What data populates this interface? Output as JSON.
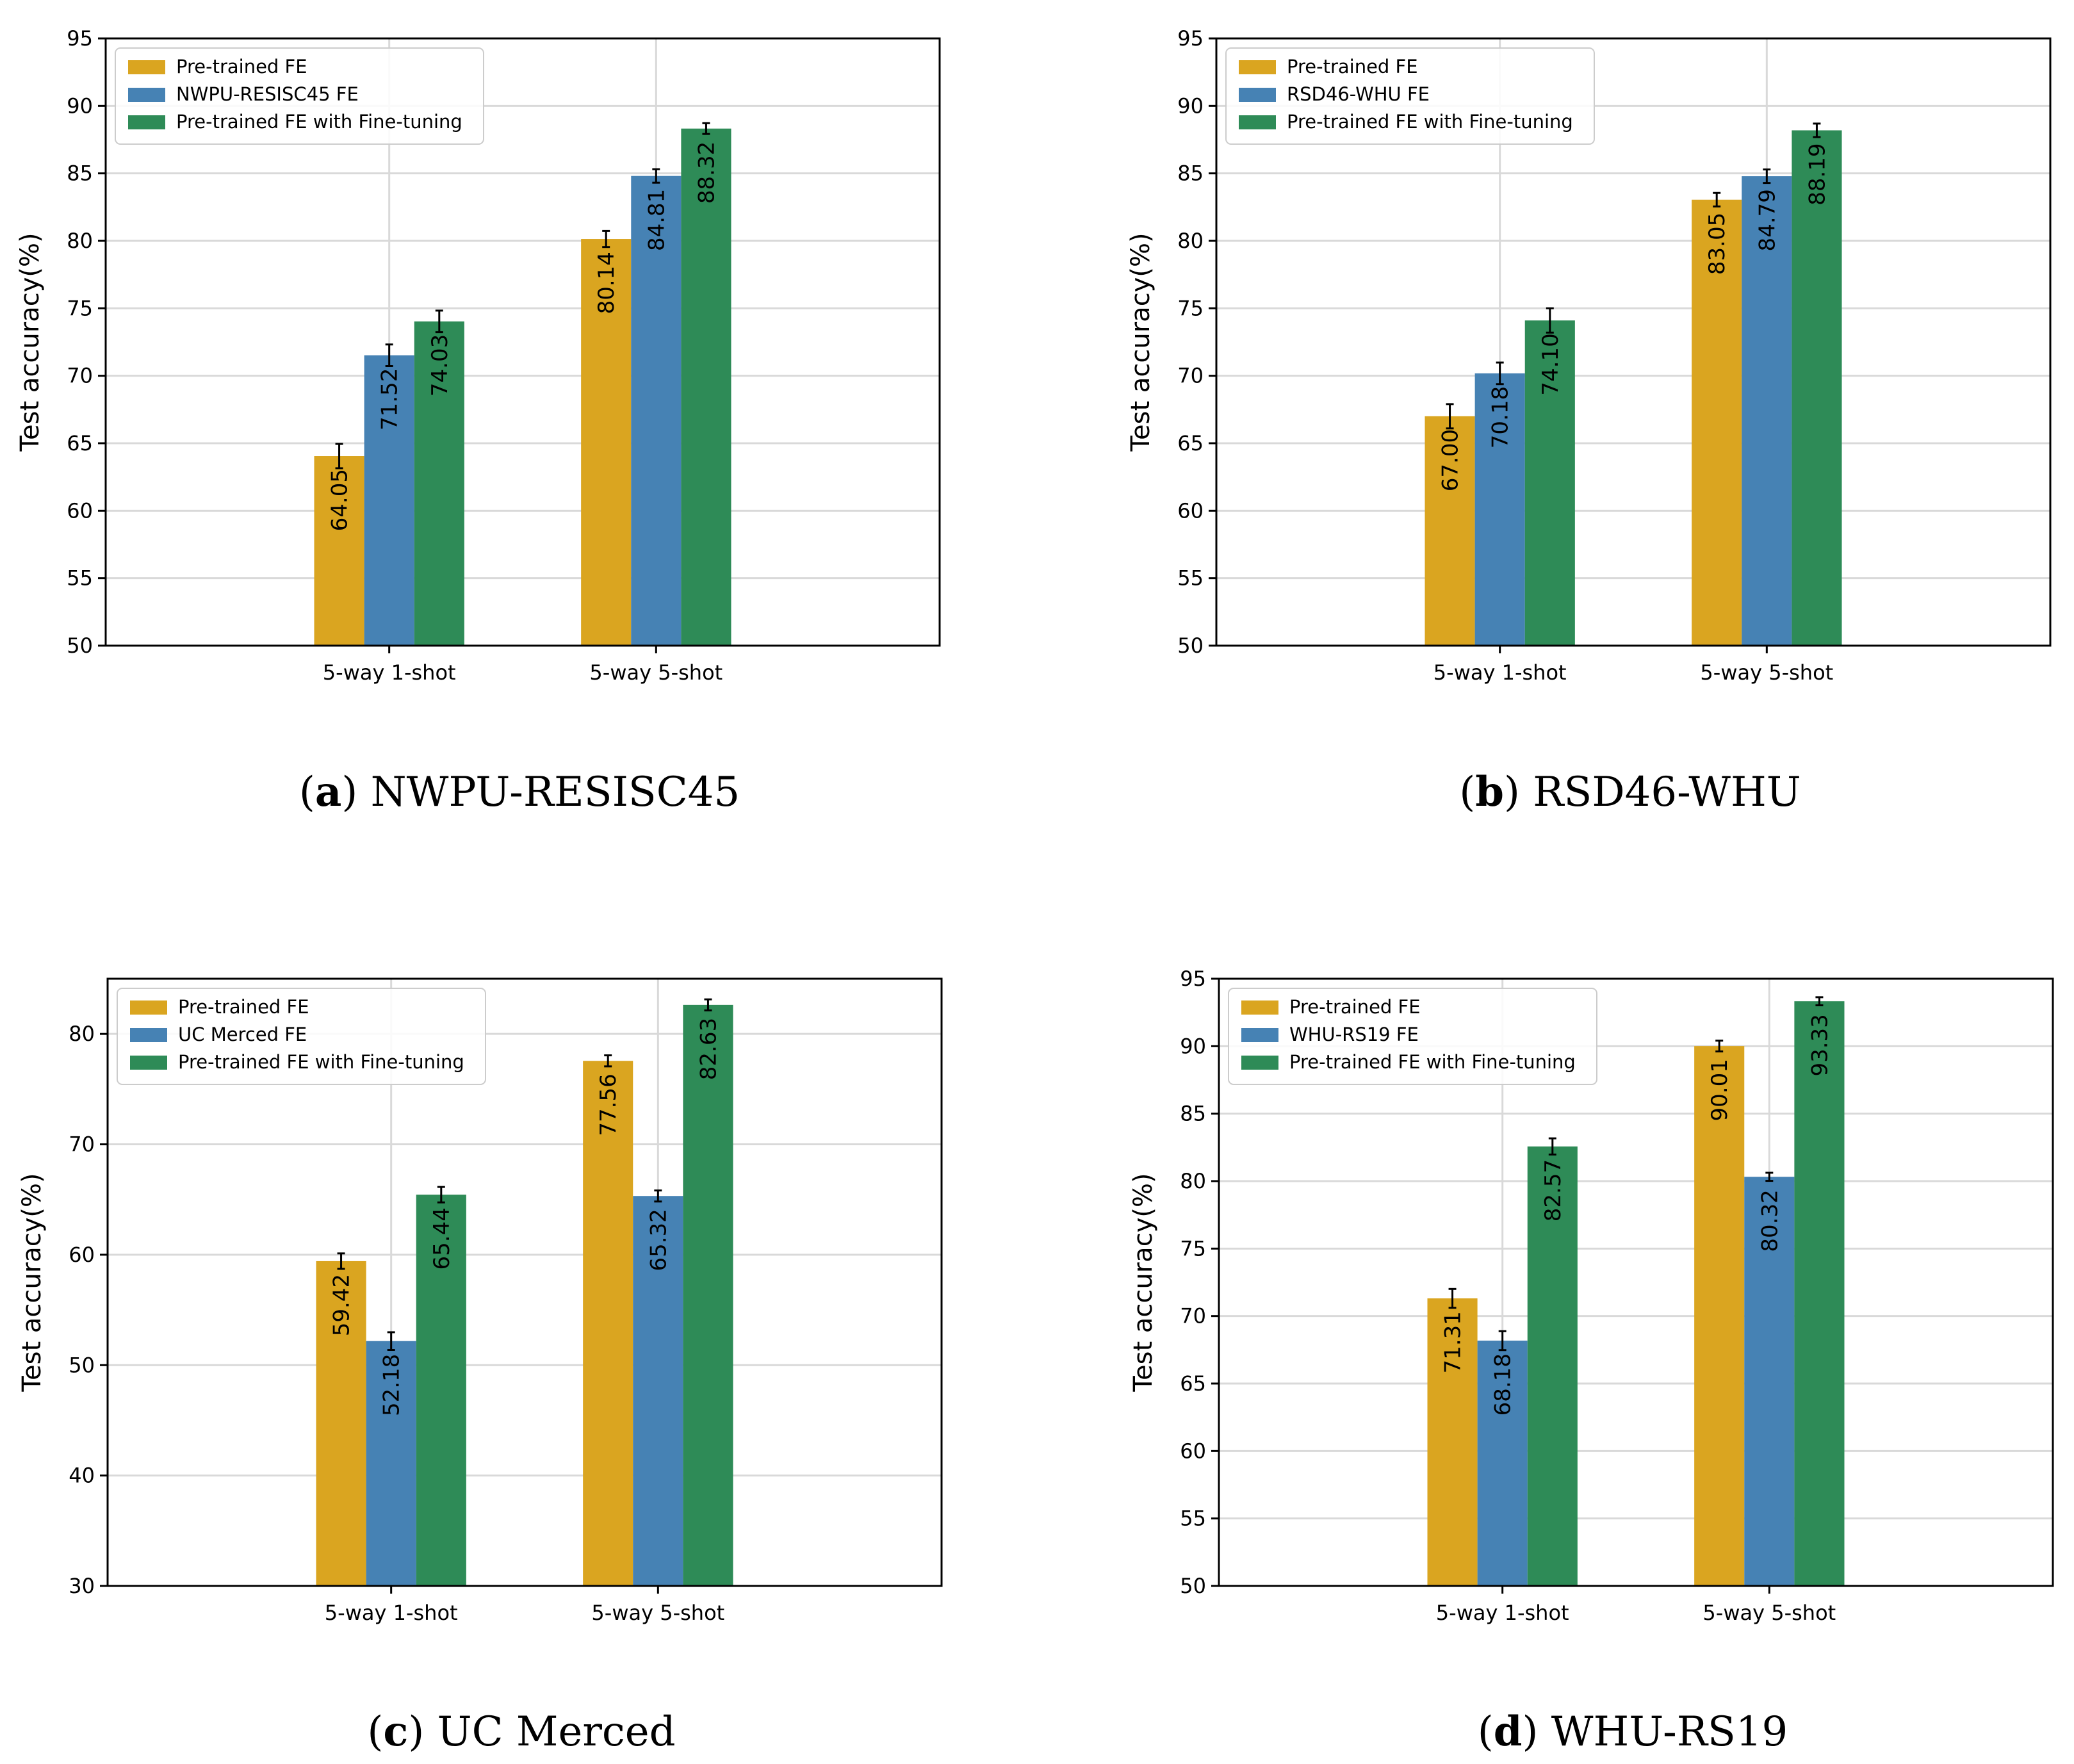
{
  "chart_data": [
    {
      "type": "bar",
      "caption": {
        "letter": "a",
        "name": "NWPU-RESISC45"
      },
      "categories": [
        "5-way 1-shot",
        "5-way 5-shot"
      ],
      "ylabel": "Test accuracy(%)",
      "ylim": [
        50,
        95
      ],
      "yticks": [
        50,
        55,
        60,
        65,
        70,
        75,
        80,
        85,
        90,
        95
      ],
      "legend_position": "top-left",
      "series": [
        {
          "name": "Pre-trained FE",
          "color": "#DAA520",
          "values": [
            64.05,
            80.14
          ],
          "errors": [
            0.9,
            0.6
          ],
          "labels": [
            "64.05",
            "80.14"
          ]
        },
        {
          "name": "NWPU-RESISC45 FE",
          "color": "#4682B4",
          "values": [
            71.52,
            84.81
          ],
          "errors": [
            0.8,
            0.5
          ],
          "labels": [
            "71.52",
            "84.81"
          ]
        },
        {
          "name": "Pre-trained FE with Fine-tuning",
          "color": "#2E8B57",
          "values": [
            74.03,
            88.32
          ],
          "errors": [
            0.8,
            0.4
          ],
          "labels": [
            "74.03",
            "88.32"
          ]
        }
      ]
    },
    {
      "type": "bar",
      "caption": {
        "letter": "b",
        "name": "RSD46-WHU"
      },
      "categories": [
        "5-way 1-shot",
        "5-way 5-shot"
      ],
      "ylabel": "Test accuracy(%)",
      "ylim": [
        50,
        95
      ],
      "yticks": [
        50,
        55,
        60,
        65,
        70,
        75,
        80,
        85,
        90,
        95
      ],
      "legend_position": "top-left",
      "series": [
        {
          "name": "Pre-trained FE",
          "color": "#DAA520",
          "values": [
            67.0,
            83.05
          ],
          "errors": [
            0.9,
            0.5
          ],
          "labels": [
            "67.00",
            "83.05"
          ]
        },
        {
          "name": "RSD46-WHU FE",
          "color": "#4682B4",
          "values": [
            70.18,
            84.79
          ],
          "errors": [
            0.8,
            0.5
          ],
          "labels": [
            "70.18",
            "84.79"
          ]
        },
        {
          "name": "Pre-trained FE with Fine-tuning",
          "color": "#2E8B57",
          "values": [
            74.1,
            88.19
          ],
          "errors": [
            0.9,
            0.5
          ],
          "labels": [
            "74.10",
            "88.19"
          ]
        }
      ]
    },
    {
      "type": "bar",
      "caption": {
        "letter": "c",
        "name": "UC Merced"
      },
      "categories": [
        "5-way 1-shot",
        "5-way 5-shot"
      ],
      "ylabel": "Test accuracy(%)",
      "ylim": [
        30,
        85
      ],
      "yticks": [
        30,
        40,
        50,
        60,
        70,
        80
      ],
      "legend_position": "top-left",
      "series": [
        {
          "name": "Pre-trained FE",
          "color": "#DAA520",
          "values": [
            59.42,
            77.56
          ],
          "errors": [
            0.7,
            0.5
          ],
          "labels": [
            "59.42",
            "77.56"
          ]
        },
        {
          "name": "UC Merced FE",
          "color": "#4682B4",
          "values": [
            52.18,
            65.32
          ],
          "errors": [
            0.8,
            0.5
          ],
          "labels": [
            "52.18",
            "65.32"
          ]
        },
        {
          "name": "Pre-trained FE with Fine-tuning",
          "color": "#2E8B57",
          "values": [
            65.44,
            82.63
          ],
          "errors": [
            0.7,
            0.5
          ],
          "labels": [
            "65.44",
            "82.63"
          ]
        }
      ]
    },
    {
      "type": "bar",
      "caption": {
        "letter": "d",
        "name": "WHU-RS19"
      },
      "categories": [
        "5-way 1-shot",
        "5-way 5-shot"
      ],
      "ylabel": "Test accuracy(%)",
      "ylim": [
        50,
        95
      ],
      "yticks": [
        50,
        55,
        60,
        65,
        70,
        75,
        80,
        85,
        90,
        95
      ],
      "legend_position": "top-left",
      "series": [
        {
          "name": "Pre-trained FE",
          "color": "#DAA520",
          "values": [
            71.31,
            90.01
          ],
          "errors": [
            0.7,
            0.4
          ],
          "labels": [
            "71.31",
            "90.01"
          ]
        },
        {
          "name": "WHU-RS19 FE",
          "color": "#4682B4",
          "values": [
            68.18,
            80.32
          ],
          "errors": [
            0.7,
            0.3
          ],
          "labels": [
            "68.18",
            "80.32"
          ]
        },
        {
          "name": "Pre-trained FE with Fine-tuning",
          "color": "#2E8B57",
          "values": [
            82.57,
            93.33
          ],
          "errors": [
            0.6,
            0.3
          ],
          "labels": [
            "82.57",
            "93.33"
          ]
        }
      ]
    }
  ]
}
